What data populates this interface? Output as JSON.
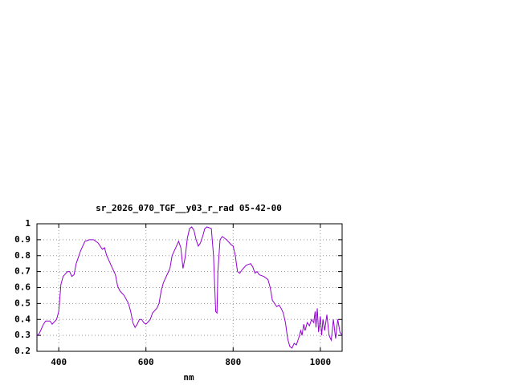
{
  "chart_data": {
    "type": "line",
    "title": "sr_2026_070_TGF__y03_r_rad 05-42-00",
    "x_label": "nm",
    "x": [
      350,
      355,
      365,
      370,
      380,
      385,
      395,
      400,
      405,
      410,
      420,
      425,
      430,
      435,
      440,
      450,
      460,
      470,
      480,
      490,
      500,
      505,
      510,
      520,
      530,
      535,
      540,
      550,
      560,
      565,
      570,
      575,
      580,
      585,
      590,
      595,
      600,
      610,
      615,
      625,
      630,
      635,
      640,
      650,
      655,
      660,
      670,
      675,
      680,
      685,
      690,
      695,
      700,
      705,
      710,
      715,
      720,
      725,
      730,
      735,
      740,
      750,
      755,
      760,
      763,
      765,
      770,
      775,
      785,
      795,
      800,
      805,
      810,
      815,
      820,
      830,
      840,
      845,
      850,
      855,
      860,
      870,
      880,
      885,
      890,
      895,
      900,
      905,
      910,
      915,
      920,
      925,
      930,
      935,
      940,
      945,
      950,
      955,
      958,
      962,
      965,
      970,
      975,
      980,
      985,
      988,
      990,
      993,
      996,
      1000,
      1003,
      1006,
      1010,
      1015,
      1020,
      1025,
      1030,
      1035,
      1040,
      1045,
      1050
    ],
    "series": [
      {
        "color": "#9400d3",
        "values": [
          0.3,
          0.31,
          0.37,
          0.39,
          0.39,
          0.37,
          0.4,
          0.45,
          0.62,
          0.67,
          0.7,
          0.7,
          0.67,
          0.68,
          0.75,
          0.83,
          0.89,
          0.9,
          0.9,
          0.88,
          0.84,
          0.85,
          0.8,
          0.74,
          0.68,
          0.61,
          0.58,
          0.55,
          0.5,
          0.45,
          0.38,
          0.35,
          0.37,
          0.4,
          0.4,
          0.38,
          0.37,
          0.4,
          0.44,
          0.47,
          0.5,
          0.58,
          0.63,
          0.69,
          0.72,
          0.8,
          0.86,
          0.89,
          0.85,
          0.72,
          0.79,
          0.91,
          0.97,
          0.98,
          0.96,
          0.9,
          0.86,
          0.88,
          0.92,
          0.97,
          0.98,
          0.97,
          0.8,
          0.45,
          0.44,
          0.7,
          0.9,
          0.92,
          0.9,
          0.87,
          0.86,
          0.8,
          0.7,
          0.69,
          0.71,
          0.74,
          0.75,
          0.73,
          0.69,
          0.7,
          0.68,
          0.67,
          0.65,
          0.6,
          0.52,
          0.5,
          0.48,
          0.49,
          0.47,
          0.44,
          0.38,
          0.28,
          0.23,
          0.22,
          0.25,
          0.24,
          0.28,
          0.33,
          0.3,
          0.37,
          0.33,
          0.38,
          0.36,
          0.4,
          0.38,
          0.45,
          0.35,
          0.47,
          0.32,
          0.42,
          0.3,
          0.4,
          0.33,
          0.43,
          0.3,
          0.27,
          0.4,
          0.28,
          0.4,
          0.32,
          0.3
        ]
      }
    ],
    "xlim": [
      350,
      1050
    ],
    "xticks": [
      400,
      600,
      800,
      1000
    ],
    "ylim": [
      0.2,
      1
    ],
    "yticks": [
      0.2,
      0.3,
      0.4,
      0.5,
      0.6,
      0.7,
      0.8,
      0.9,
      1
    ],
    "grid": true
  }
}
